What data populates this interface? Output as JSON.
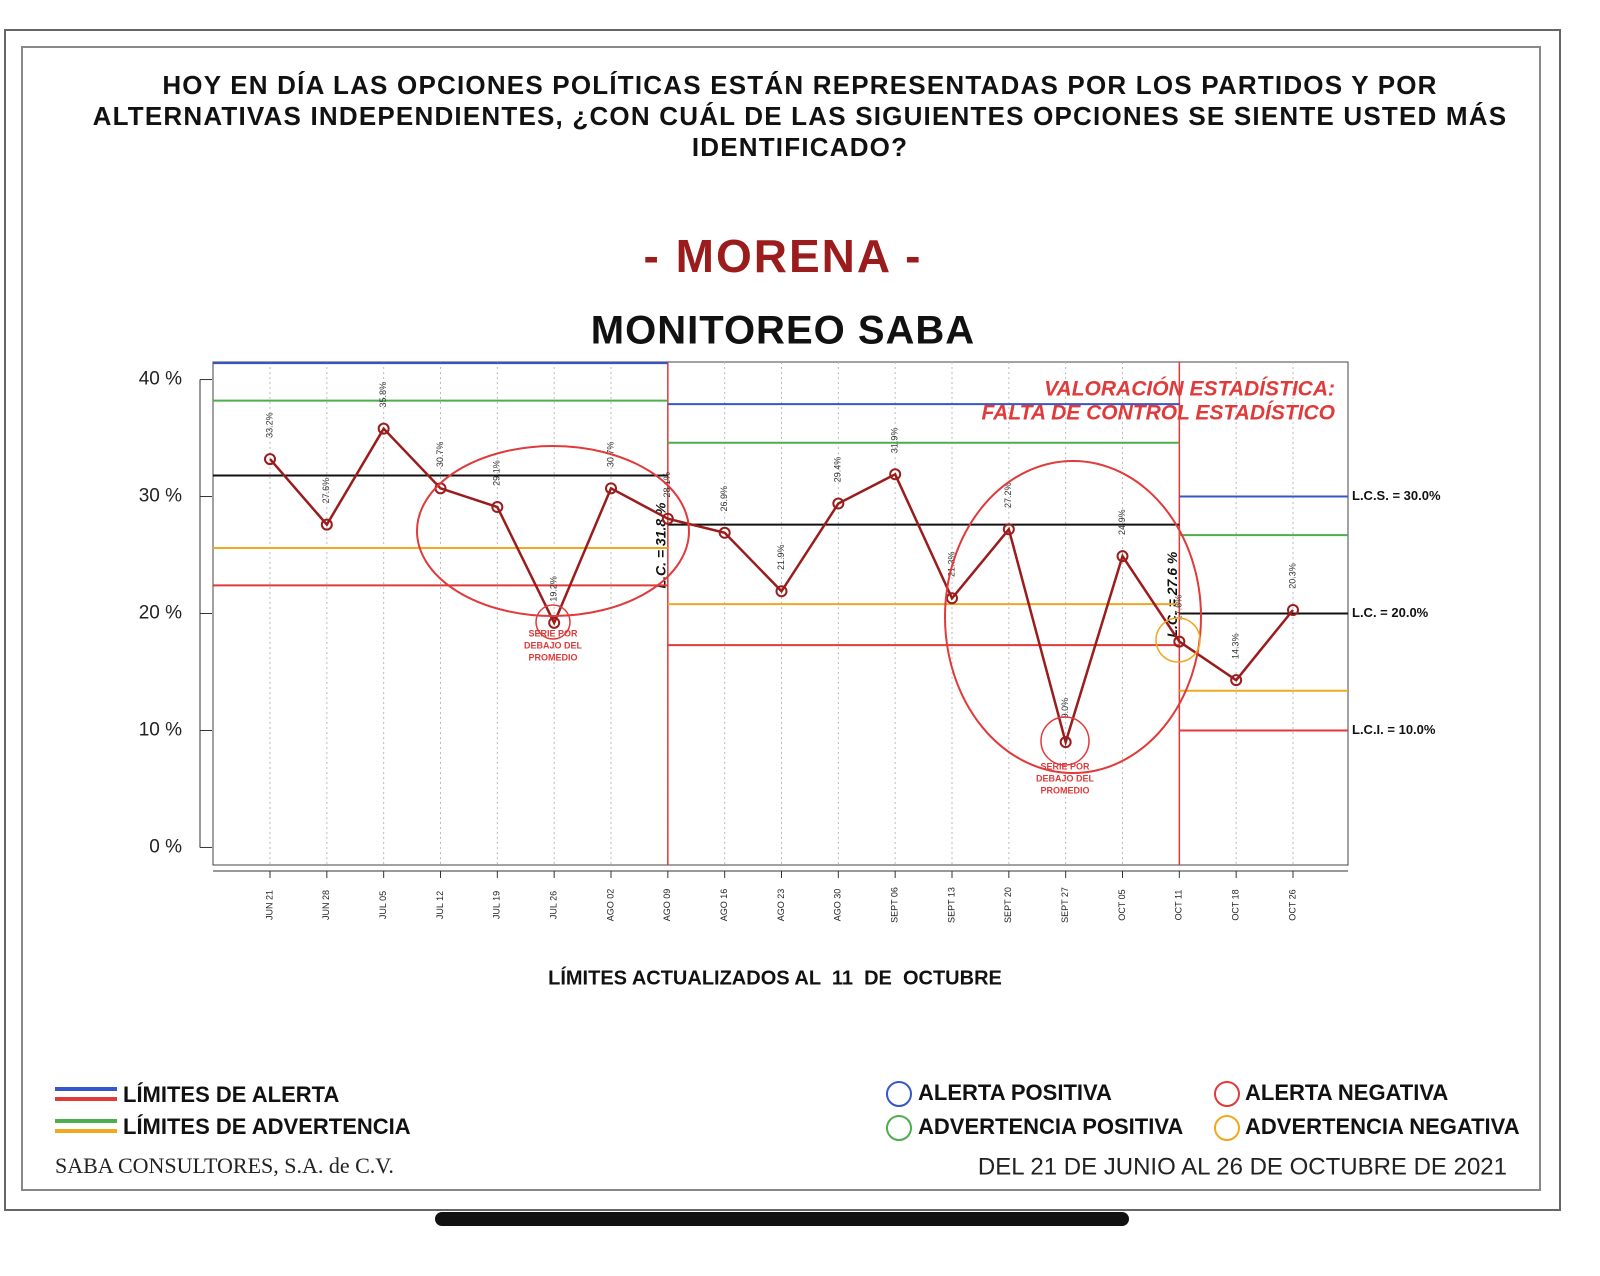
{
  "chart_data": {
    "type": "control",
    "question": "HOY EN DÍA LAS OPCIONES POLÍTICAS ESTÁN REPRESENTADAS POR LOS PARTIDOS Y POR ALTERNATIVAS INDEPENDIENTES, ¿CON CUÁL DE LAS SIGUIENTES OPCIONES SE SIENTE USTED MÁS IDENTIFICADO?",
    "subtitle": "- MORENA -",
    "title": "MONITOREO SABA",
    "categories": [
      "JUN 21",
      "JUN 28",
      "JUL 05",
      "JUL 12",
      "JUL 19",
      "JUL 26",
      "AGO 02",
      "AGO 09",
      "AGO 16",
      "AGO 23",
      "AGO 30",
      "SEPT 06",
      "SEPT 13",
      "SEPT 20",
      "SEPT 27",
      "OCT 05",
      "OCT 11",
      "OCT 18",
      "OCT 26"
    ],
    "series": [
      {
        "color": "#9b1c1c",
        "values": [
          33.2,
          27.6,
          35.8,
          30.7,
          29.1,
          19.2,
          30.7,
          28.1,
          26.9,
          21.9,
          29.4,
          31.9,
          21.3,
          27.2,
          9.0,
          24.9,
          17.6,
          14.3,
          20.3
        ],
        "value_labels": [
          "33.2%",
          "27.6%",
          "35.8%",
          "30.7%",
          "29.1%",
          "19.2%",
          "30.7%",
          "28.1%",
          "26.9%",
          "21.9%",
          "29.4%",
          "31.9%",
          "21.3%",
          "27.2%",
          "9.0%",
          "24.9%",
          "17.6%",
          "14.3%",
          "20.3%"
        ]
      }
    ],
    "ylim": [
      -1.5,
      41.5
    ],
    "yticks": [
      {
        "value": 0,
        "label": "0 %"
      },
      {
        "value": 10,
        "label": "10 %"
      },
      {
        "value": 20,
        "label": "20 %"
      },
      {
        "value": 30,
        "label": "30 %"
      },
      {
        "value": 40,
        "label": "40 %"
      }
    ],
    "breaks": [
      "AGO 09",
      "OCT 11"
    ],
    "limit_colors": {
      "ucl": "#3557c9",
      "uwl": "#4cae4c",
      "cl": "#111111",
      "lwl": "#f0a820",
      "lcl": "#e03a3a"
    },
    "periods": [
      {
        "ucl": 41.4,
        "uwl": 38.2,
        "cl": 31.8,
        "cl_label": "L.C. = 31.8 %",
        "lwl": 25.6,
        "lcl": 22.4
      },
      {
        "ucl": 37.9,
        "uwl": 34.6,
        "cl": 27.6,
        "cl_label": "L.C. = 27.6 %",
        "lwl": 20.8,
        "lcl": 17.3
      },
      {
        "ucl": 30.0,
        "ucl_label": "L.C.S. = 30.0%",
        "uwl": 26.7,
        "cl": 20.0,
        "cl_label": "L.C. = 20.0%",
        "lwl": 13.4,
        "lcl": 10.0,
        "lcl_label": "L.C.I. = 10.0%"
      }
    ],
    "annotations": {
      "assessment": [
        "VALORACIÓN ESTADÍSTICA:",
        "FALTA DE CONTROL ESTADÍSTICO"
      ],
      "below_mean_1": [
        "SERIE POR",
        "DEBAJO DEL",
        "PROMEDIO"
      ],
      "below_mean_2": [
        "SERIE POR",
        "DEBAJO DEL",
        "PROMEDIO"
      ]
    },
    "footnote": "LÍMITES ACTUALIZADOS AL  11  DE  OCTUBRE",
    "legend": {
      "alert_limits": "LÍMITES DE ALERTA",
      "warning_limits": "LÍMITES DE ADVERTENCIA",
      "alert_positive": "ALERTA POSITIVA",
      "warning_positive": "ADVERTENCIA POSITIVA",
      "alert_negative": "ALERTA NEGATIVA",
      "warning_negative": "ADVERTENCIA NEGATIVA"
    },
    "source": "SABA CONSULTORES, S.A. de C.V.",
    "period": "DEL 21 DE JUNIO AL 26 DE OCTUBRE DE 2021"
  }
}
